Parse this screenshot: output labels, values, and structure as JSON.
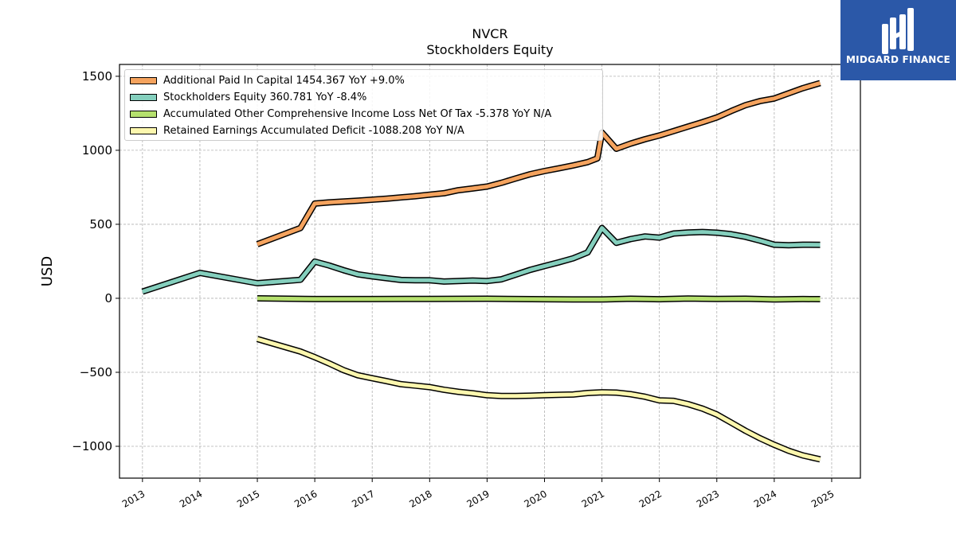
{
  "brand": {
    "name": "MIDGARD FINANCE",
    "bg_color": "#2b58a8"
  },
  "chart_data": {
    "type": "line",
    "title": "NVCR",
    "subtitle": "Stockholders  Equity",
    "ylabel": "USD",
    "xlabel": "",
    "xlim": [
      2012.6,
      2025.5
    ],
    "ylim": [
      -1215,
      1580
    ],
    "grid": true,
    "legend_position": "top-left",
    "x_ticks": [
      2013,
      2014,
      2015,
      2016,
      2017,
      2018,
      2019,
      2020,
      2021,
      2022,
      2023,
      2024,
      2025
    ],
    "x_tick_labels": [
      "2013",
      "2014",
      "2015",
      "2016",
      "2017",
      "2018",
      "2019",
      "2020",
      "2021",
      "2022",
      "2023",
      "2024",
      "2025"
    ],
    "y_ticks": [
      -1000,
      -500,
      0,
      500,
      1000,
      1500
    ],
    "y_tick_labels": [
      "−1000",
      "−500",
      "0",
      "500",
      "1000",
      "1500"
    ],
    "series": [
      {
        "name": "Additional Paid In Capital",
        "legend_label": "Additional Paid In Capital  1454.367 YoY +9.0%",
        "color": "#f5a35e",
        "points": [
          [
            2015.0,
            365
          ],
          [
            2015.75,
            475
          ],
          [
            2016.0,
            640
          ],
          [
            2016.25,
            648
          ],
          [
            2016.75,
            660
          ],
          [
            2017.25,
            673
          ],
          [
            2017.75,
            690
          ],
          [
            2018.0,
            700
          ],
          [
            2018.25,
            710
          ],
          [
            2018.5,
            730
          ],
          [
            2018.75,
            742
          ],
          [
            2019.0,
            755
          ],
          [
            2019.25,
            780
          ],
          [
            2019.5,
            810
          ],
          [
            2019.75,
            838
          ],
          [
            2020.0,
            860
          ],
          [
            2020.25,
            878
          ],
          [
            2020.5,
            898
          ],
          [
            2020.75,
            920
          ],
          [
            2020.92,
            945
          ],
          [
            2021.0,
            1120
          ],
          [
            2021.25,
            1010
          ],
          [
            2021.5,
            1045
          ],
          [
            2021.75,
            1075
          ],
          [
            2022.0,
            1100
          ],
          [
            2022.25,
            1130
          ],
          [
            2022.5,
            1160
          ],
          [
            2022.75,
            1190
          ],
          [
            2023.0,
            1222
          ],
          [
            2023.25,
            1265
          ],
          [
            2023.5,
            1305
          ],
          [
            2023.75,
            1332
          ],
          [
            2024.0,
            1350
          ],
          [
            2024.25,
            1385
          ],
          [
            2024.5,
            1420
          ],
          [
            2024.8,
            1454.367
          ]
        ]
      },
      {
        "name": "Stockholders Equity",
        "legend_label": "Stockholders Equity  360.781 YoY -8.4%",
        "color": "#84cfbd",
        "points": [
          [
            2013.0,
            45
          ],
          [
            2014.0,
            172
          ],
          [
            2015.0,
            102
          ],
          [
            2015.75,
            125
          ],
          [
            2016.0,
            248
          ],
          [
            2016.25,
            222
          ],
          [
            2016.5,
            190
          ],
          [
            2016.75,
            162
          ],
          [
            2017.0,
            148
          ],
          [
            2017.25,
            136
          ],
          [
            2017.5,
            124
          ],
          [
            2017.75,
            122
          ],
          [
            2018.0,
            122
          ],
          [
            2018.25,
            113
          ],
          [
            2018.5,
            117
          ],
          [
            2018.75,
            120
          ],
          [
            2019.0,
            117
          ],
          [
            2019.25,
            128
          ],
          [
            2019.5,
            160
          ],
          [
            2019.75,
            192
          ],
          [
            2020.0,
            218
          ],
          [
            2020.25,
            243
          ],
          [
            2020.5,
            270
          ],
          [
            2020.75,
            310
          ],
          [
            2021.0,
            475
          ],
          [
            2021.25,
            375
          ],
          [
            2021.5,
            400
          ],
          [
            2021.75,
            418
          ],
          [
            2022.0,
            410
          ],
          [
            2022.25,
            438
          ],
          [
            2022.5,
            445
          ],
          [
            2022.75,
            448
          ],
          [
            2023.0,
            443
          ],
          [
            2023.25,
            433
          ],
          [
            2023.5,
            415
          ],
          [
            2023.75,
            390
          ],
          [
            2024.0,
            362
          ],
          [
            2024.25,
            358
          ],
          [
            2024.5,
            362
          ],
          [
            2024.8,
            360.781
          ]
        ]
      },
      {
        "name": "Accumulated Other Comprehensive Income Loss Net Of Tax",
        "legend_label": "Accumulated Other Comprehensive Income Loss Net Of Tax  -5.378 YoY N/A",
        "color": "#b5e06e",
        "points": [
          [
            2015.0,
            0
          ],
          [
            2016.0,
            -5
          ],
          [
            2017.0,
            -5
          ],
          [
            2018.0,
            -4
          ],
          [
            2019.0,
            -3
          ],
          [
            2020.0,
            -6
          ],
          [
            2020.5,
            -8
          ],
          [
            2021.0,
            -8
          ],
          [
            2021.5,
            -3
          ],
          [
            2022.0,
            -6
          ],
          [
            2022.5,
            -2
          ],
          [
            2023.0,
            -4
          ],
          [
            2023.5,
            -3
          ],
          [
            2024.0,
            -8
          ],
          [
            2024.5,
            -5
          ],
          [
            2024.8,
            -5.378
          ]
        ]
      },
      {
        "name": "Retained Earnings Accumulated Deficit",
        "legend_label": "Retained Earnings Accumulated Deficit  -1088.208 YoY N/A",
        "color": "#fcf7ae",
        "points": [
          [
            2015.0,
            -275
          ],
          [
            2015.75,
            -360
          ],
          [
            2016.0,
            -398
          ],
          [
            2016.25,
            -440
          ],
          [
            2016.5,
            -485
          ],
          [
            2016.75,
            -520
          ],
          [
            2017.0,
            -540
          ],
          [
            2017.25,
            -560
          ],
          [
            2017.5,
            -580
          ],
          [
            2017.75,
            -590
          ],
          [
            2018.0,
            -600
          ],
          [
            2018.25,
            -618
          ],
          [
            2018.5,
            -632
          ],
          [
            2018.75,
            -642
          ],
          [
            2019.0,
            -655
          ],
          [
            2019.25,
            -660
          ],
          [
            2019.5,
            -660
          ],
          [
            2019.75,
            -658
          ],
          [
            2020.0,
            -655
          ],
          [
            2020.25,
            -652
          ],
          [
            2020.5,
            -650
          ],
          [
            2020.75,
            -640
          ],
          [
            2021.0,
            -635
          ],
          [
            2021.25,
            -637
          ],
          [
            2021.5,
            -648
          ],
          [
            2021.75,
            -665
          ],
          [
            2022.0,
            -690
          ],
          [
            2022.25,
            -693
          ],
          [
            2022.5,
            -715
          ],
          [
            2022.75,
            -745
          ],
          [
            2023.0,
            -785
          ],
          [
            2023.25,
            -840
          ],
          [
            2023.5,
            -895
          ],
          [
            2023.75,
            -945
          ],
          [
            2024.0,
            -990
          ],
          [
            2024.25,
            -1030
          ],
          [
            2024.5,
            -1062
          ],
          [
            2024.8,
            -1088.208
          ]
        ]
      }
    ]
  }
}
